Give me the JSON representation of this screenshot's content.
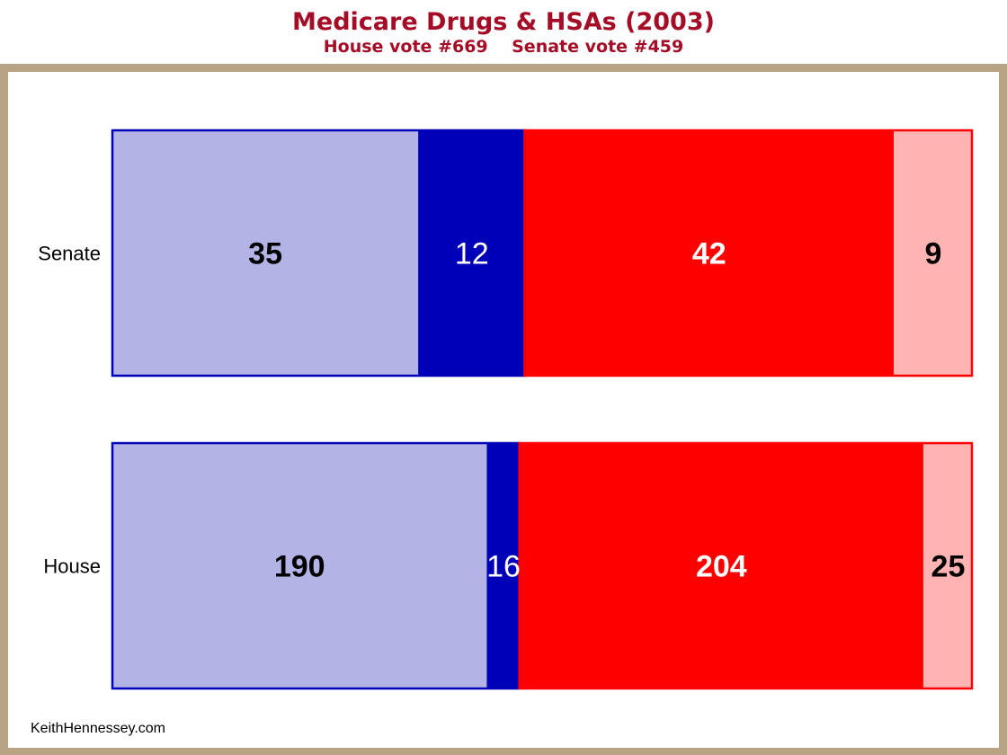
{
  "title": "Medicare Drugs & HSAs (2003)",
  "subtitle": {
    "house_vote": "House vote #669",
    "senate_vote": "Senate vote #459"
  },
  "footer": "KeithHennessey.com",
  "chart_data": {
    "type": "bar",
    "orientation": "horizontal",
    "stacked": true,
    "normalized": true,
    "categories": [
      "Senate",
      "House"
    ],
    "series": [
      {
        "values": [
          35,
          190
        ],
        "color": "#b3b3e6",
        "label_color": "#000000",
        "label_weight": "bold"
      },
      {
        "values": [
          12,
          16
        ],
        "color": "#0000b8",
        "label_color": "#ffffff",
        "label_weight": "normal"
      },
      {
        "values": [
          42,
          204
        ],
        "color": "#ff0000",
        "label_color": "#ffffff",
        "label_weight": "bold"
      },
      {
        "values": [
          9,
          25
        ],
        "color": "#ffb3b3",
        "label_color": "#000000",
        "label_weight": "bold"
      }
    ],
    "colors": {
      "dem_border": "#0000b8",
      "rep_border": "#ff0000",
      "title": "#a50d26",
      "frame": "#b8a385"
    }
  }
}
